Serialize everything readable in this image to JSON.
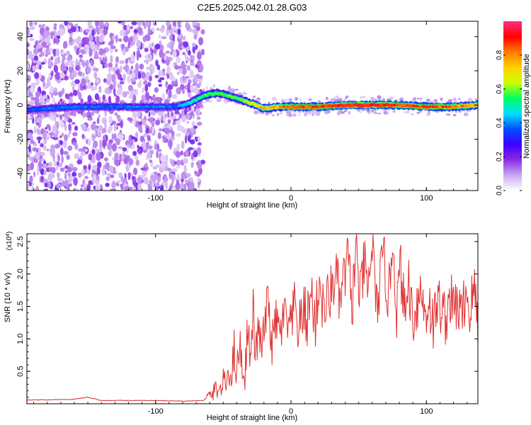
{
  "title": "C2E5.2025.042.01.28.G03",
  "chart_data": [
    {
      "type": "heatmap",
      "xlabel": "Height of straight line (km)",
      "ylabel": "Frequency (Hz)",
      "xlim": [
        -195,
        138
      ],
      "ylim": [
        -50,
        49
      ],
      "x_ticks": [
        -100,
        0,
        100
      ],
      "y_ticks": [
        40,
        20,
        0,
        -20,
        -40
      ],
      "colorbar": {
        "label": "Normalized spectral amplitude",
        "range": [
          0,
          1
        ],
        "ticks": [
          0.0,
          0.2,
          0.4,
          0.6,
          0.8
        ],
        "colormap": [
          "#ffffff",
          "#c9a7f2",
          "#8b2be2",
          "#3c00ff",
          "#0050ff",
          "#00e0ff",
          "#00ff60",
          "#ccff00",
          "#ffd000",
          "#ff7a00",
          "#ff0000",
          "#ff2f80"
        ]
      },
      "dominant_frequency": {
        "x": [
          -195,
          -180,
          -160,
          -140,
          -120,
          -100,
          -85,
          -75,
          -68,
          -62,
          -55,
          -48,
          -40,
          -33,
          -26,
          -20,
          -10,
          0,
          20,
          40,
          60,
          80,
          100,
          120,
          138
        ],
        "y": [
          -3,
          -2,
          -1,
          -1,
          -1,
          -1,
          -1,
          1,
          4,
          6,
          7,
          6,
          4,
          2,
          0,
          -2,
          -1,
          -1,
          -1,
          0,
          0,
          0,
          -1,
          -1,
          0
        ],
        "amplitude": [
          0.35,
          0.4,
          0.4,
          0.4,
          0.4,
          0.4,
          0.4,
          0.5,
          0.55,
          0.6,
          0.6,
          0.6,
          0.6,
          0.65,
          0.7,
          0.8,
          0.8,
          0.9,
          0.9,
          0.95,
          0.95,
          0.9,
          0.9,
          0.85,
          0.8
        ]
      }
    },
    {
      "type": "line",
      "xlabel": "Height of straight line (km)",
      "ylabel": "SNR (10 * v/v)",
      "y_scale_label": "(x10",
      "y_scale_exponent": "4",
      "xlim": [
        -195,
        138
      ],
      "ylim": [
        0,
        2.62
      ],
      "x_ticks": [
        -100,
        0,
        100
      ],
      "y_ticks": [
        0.5,
        1.0,
        1.5,
        2.0,
        2.5
      ],
      "series": [
        {
          "color": "#e03030",
          "x": [
            -195,
            -180,
            -160,
            -150,
            -140,
            -120,
            -100,
            -80,
            -65,
            -58,
            -55,
            -52,
            -50,
            -48,
            -46,
            -44,
            -42,
            -40,
            -38,
            -36,
            -34,
            -32,
            -30,
            -28,
            -26,
            -24,
            -22,
            -20,
            -17,
            -14,
            -11,
            -8,
            -5,
            -2,
            0,
            3,
            6,
            9,
            12,
            15,
            18,
            21,
            24,
            27,
            30,
            33,
            36,
            39,
            42,
            45,
            48,
            51,
            54,
            57,
            60,
            63,
            66,
            69,
            72,
            75,
            78,
            81,
            84,
            87,
            90,
            93,
            96,
            99,
            102,
            105,
            108,
            111,
            114,
            117,
            120,
            123,
            126,
            129,
            132,
            135,
            138
          ],
          "y": [
            0.06,
            0.06,
            0.07,
            0.1,
            0.05,
            0.05,
            0.05,
            0.04,
            0.05,
            0.15,
            0.25,
            0.2,
            0.35,
            0.3,
            0.55,
            0.4,
            0.85,
            0.45,
            1.0,
            0.55,
            0.4,
            1.25,
            0.6,
            1.45,
            0.7,
            1.2,
            0.8,
            1.1,
            1.6,
            0.9,
            1.3,
            1.05,
            1.4,
            1.15,
            1.2,
            1.5,
            1.1,
            1.45,
            1.3,
            1.7,
            1.25,
            1.9,
            1.4,
            1.6,
            1.75,
            2.05,
            1.55,
            1.9,
            2.25,
            1.5,
            2.4,
            1.6,
            2.15,
            1.7,
            2.5,
            1.45,
            1.95,
            2.2,
            1.55,
            2.6,
            1.45,
            2.1,
            1.35,
            1.9,
            1.3,
            1.55,
            1.75,
            1.35,
            1.6,
            1.2,
            1.55,
            1.5,
            1.3,
            1.65,
            1.45,
            1.55,
            1.3,
            1.75,
            1.4,
            1.8,
            1.25
          ]
        }
      ]
    }
  ]
}
